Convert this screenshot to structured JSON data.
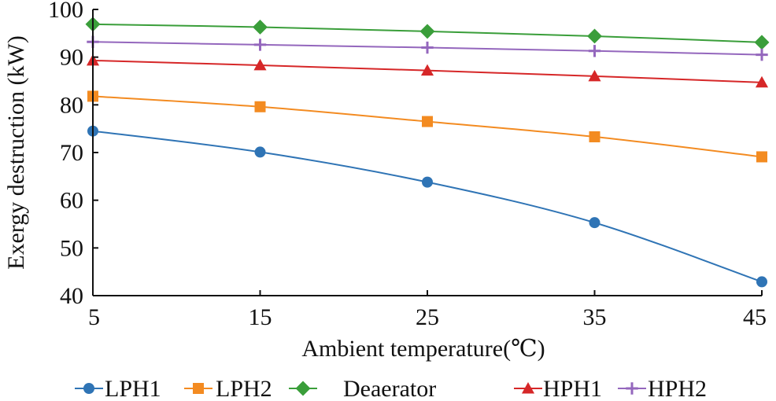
{
  "chart_data": {
    "type": "line",
    "title": "",
    "xlabel": "Ambient temperature(℃)",
    "ylabel": "Exergy destruction (kW)",
    "x": [
      5,
      15,
      25,
      35,
      45
    ],
    "x_tick_labels": [
      "5",
      "15",
      "25",
      "35",
      "45"
    ],
    "y_tick_labels": [
      "40",
      "50",
      "60",
      "70",
      "80",
      "90",
      "100"
    ],
    "y_ticks": [
      40,
      50,
      60,
      70,
      80,
      90,
      100
    ],
    "xlim": [
      5,
      45
    ],
    "ylim": [
      40,
      100
    ],
    "grid": false,
    "legend_position": "bottom",
    "series": [
      {
        "name": "LPH1",
        "values": [
          74.5,
          70.1,
          63.8,
          55.3,
          42.9
        ],
        "color": "#2f74b5",
        "marker": "circle"
      },
      {
        "name": "LPH2",
        "values": [
          81.8,
          79.6,
          76.5,
          73.3,
          69.1
        ],
        "color": "#f38b21",
        "marker": "square"
      },
      {
        "name": "Deaerator",
        "values": [
          96.9,
          96.3,
          95.4,
          94.4,
          93.1
        ],
        "color": "#3a9e3a",
        "marker": "diamond"
      },
      {
        "name": "HPH1",
        "values": [
          89.3,
          88.3,
          87.2,
          86.0,
          84.7
        ],
        "color": "#d62728",
        "marker": "triangle"
      },
      {
        "name": "HPH2",
        "values": [
          93.2,
          92.6,
          92.0,
          91.3,
          90.5
        ],
        "color": "#9467bd",
        "marker": "plus"
      }
    ]
  }
}
